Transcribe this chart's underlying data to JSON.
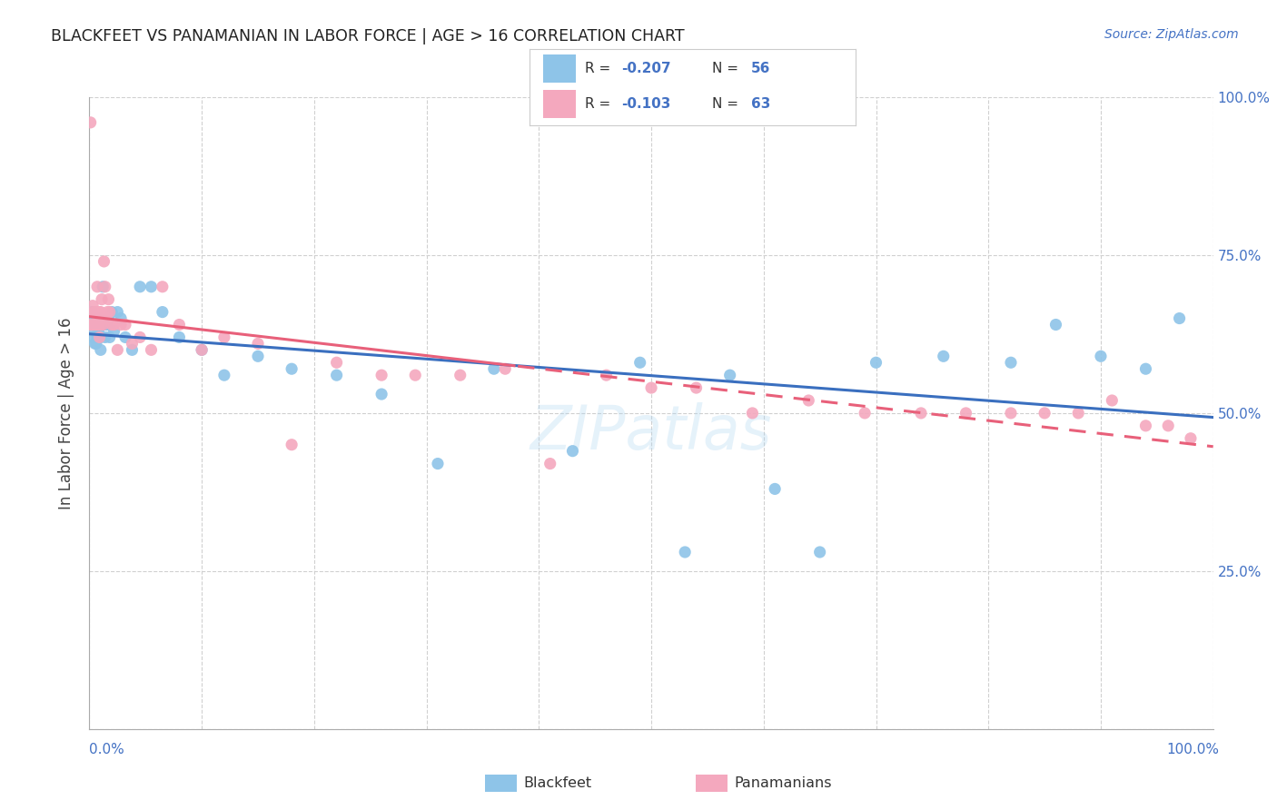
{
  "title": "BLACKFEET VS PANAMANIAN IN LABOR FORCE | AGE > 16 CORRELATION CHART",
  "source": "Source: ZipAtlas.com",
  "ylabel": "In Labor Force | Age > 16",
  "legend_blue_label": "Blackfeet",
  "legend_pink_label": "Panamanians",
  "blue_color": "#8ec4e8",
  "pink_color": "#f4a8be",
  "blue_line_color": "#3a6fbf",
  "pink_line_color": "#e8607a",
  "background_color": "#ffffff",
  "grid_color": "#d0d0d0",
  "watermark": "ZIPatlas",
  "blue_x": [
    0.001,
    0.002,
    0.003,
    0.003,
    0.004,
    0.005,
    0.005,
    0.006,
    0.006,
    0.007,
    0.007,
    0.008,
    0.008,
    0.009,
    0.009,
    0.01,
    0.01,
    0.011,
    0.012,
    0.013,
    0.014,
    0.015,
    0.016,
    0.017,
    0.018,
    0.02,
    0.022,
    0.025,
    0.028,
    0.032,
    0.038,
    0.045,
    0.055,
    0.065,
    0.08,
    0.1,
    0.12,
    0.15,
    0.18,
    0.22,
    0.26,
    0.31,
    0.36,
    0.43,
    0.49,
    0.53,
    0.57,
    0.61,
    0.65,
    0.7,
    0.76,
    0.82,
    0.86,
    0.9,
    0.94,
    0.97
  ],
  "blue_y": [
    0.64,
    0.66,
    0.62,
    0.64,
    0.63,
    0.65,
    0.61,
    0.64,
    0.61,
    0.64,
    0.62,
    0.64,
    0.63,
    0.62,
    0.65,
    0.62,
    0.6,
    0.64,
    0.7,
    0.64,
    0.62,
    0.64,
    0.64,
    0.65,
    0.62,
    0.66,
    0.63,
    0.66,
    0.65,
    0.62,
    0.6,
    0.7,
    0.7,
    0.66,
    0.62,
    0.6,
    0.56,
    0.59,
    0.57,
    0.56,
    0.53,
    0.42,
    0.57,
    0.44,
    0.58,
    0.28,
    0.56,
    0.38,
    0.28,
    0.58,
    0.59,
    0.58,
    0.64,
    0.59,
    0.57,
    0.65
  ],
  "pink_x": [
    0.001,
    0.001,
    0.002,
    0.002,
    0.003,
    0.003,
    0.004,
    0.004,
    0.005,
    0.005,
    0.006,
    0.006,
    0.007,
    0.007,
    0.008,
    0.008,
    0.009,
    0.009,
    0.01,
    0.01,
    0.011,
    0.012,
    0.013,
    0.014,
    0.015,
    0.016,
    0.017,
    0.018,
    0.02,
    0.022,
    0.025,
    0.028,
    0.032,
    0.038,
    0.045,
    0.055,
    0.065,
    0.08,
    0.1,
    0.12,
    0.15,
    0.18,
    0.22,
    0.26,
    0.29,
    0.33,
    0.37,
    0.41,
    0.46,
    0.5,
    0.54,
    0.59,
    0.64,
    0.69,
    0.74,
    0.78,
    0.82,
    0.85,
    0.88,
    0.91,
    0.94,
    0.96,
    0.98
  ],
  "pink_y": [
    0.96,
    0.64,
    0.64,
    0.64,
    0.67,
    0.64,
    0.66,
    0.64,
    0.66,
    0.64,
    0.64,
    0.66,
    0.64,
    0.7,
    0.65,
    0.64,
    0.66,
    0.62,
    0.64,
    0.66,
    0.68,
    0.64,
    0.74,
    0.7,
    0.65,
    0.66,
    0.68,
    0.66,
    0.64,
    0.64,
    0.6,
    0.64,
    0.64,
    0.61,
    0.62,
    0.6,
    0.7,
    0.64,
    0.6,
    0.62,
    0.61,
    0.45,
    0.58,
    0.56,
    0.56,
    0.56,
    0.57,
    0.42,
    0.56,
    0.54,
    0.54,
    0.5,
    0.52,
    0.5,
    0.5,
    0.5,
    0.5,
    0.5,
    0.5,
    0.52,
    0.48,
    0.48,
    0.46
  ]
}
